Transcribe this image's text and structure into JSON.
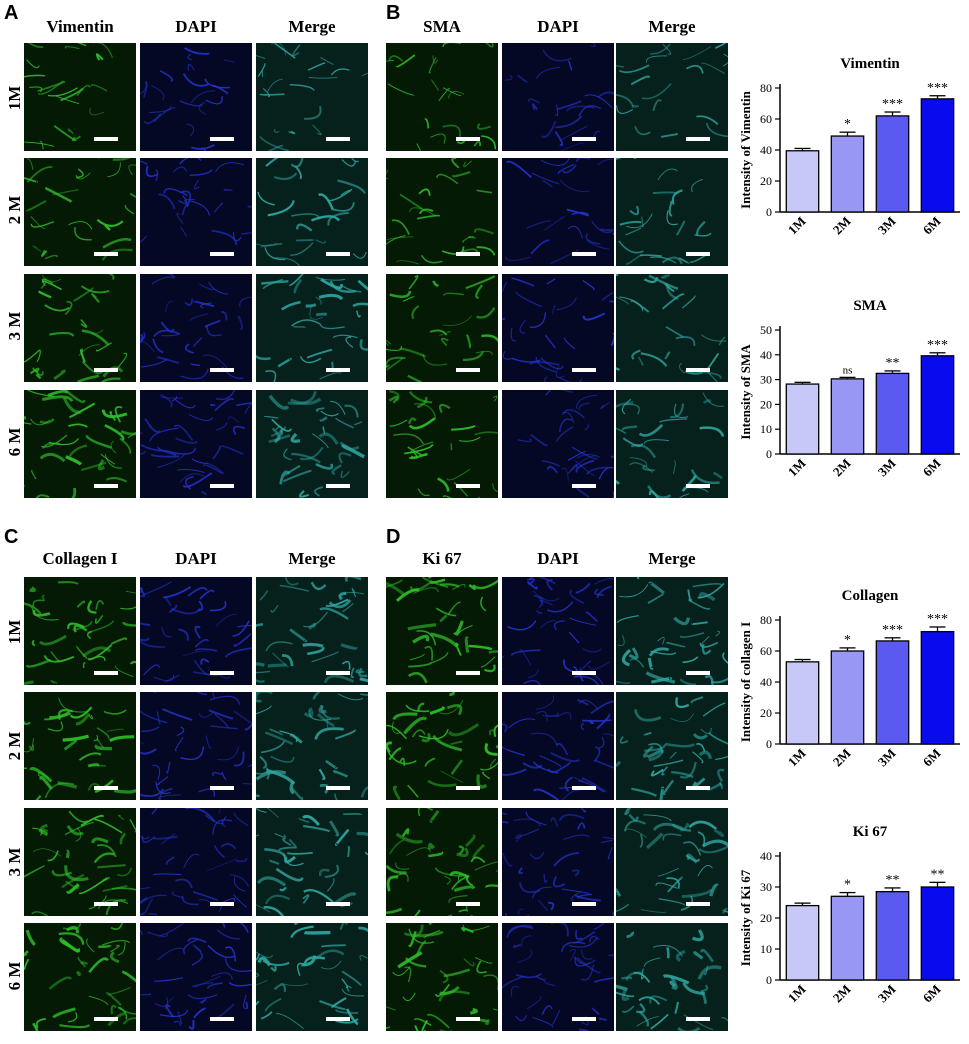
{
  "panels": {
    "A": {
      "letter": "A",
      "columns": [
        "Vimentin",
        "DAPI",
        "Merge"
      ],
      "rows": [
        "1M",
        "2 M",
        "3 M",
        "6 M"
      ]
    },
    "B": {
      "letter": "B",
      "columns": [
        "SMA",
        "DAPI",
        "Merge"
      ]
    },
    "C": {
      "letter": "C",
      "columns": [
        "Collagen I",
        "DAPI",
        "Merge"
      ],
      "rows": [
        "1M",
        "2 M",
        "3 M",
        "6 M"
      ]
    },
    "D": {
      "letter": "D",
      "columns": [
        "Ki 67",
        "DAPI",
        "Merge"
      ]
    }
  },
  "colors": {
    "green_channel": "#2fbf2a",
    "blue_channel": "#2233cc",
    "merge_channel": "#2fa6a0",
    "bar_1M": "#c8c8f8",
    "bar_2M": "#9898f4",
    "bar_3M": "#5a5af0",
    "bar_6M": "#0a0aee"
  },
  "chart_data": [
    {
      "type": "bar",
      "title": "Vimentin",
      "ylabel": "Intensity of Vimentin",
      "categories": [
        "1M",
        "2M",
        "3M",
        "6M"
      ],
      "values": [
        39.5,
        49,
        62,
        73
      ],
      "errors": [
        1.5,
        2.5,
        2.5,
        2
      ],
      "significance": [
        "",
        "*",
        "***",
        "***"
      ],
      "ylim": [
        0,
        80
      ],
      "yticks": [
        0,
        20,
        40,
        60,
        80
      ]
    },
    {
      "type": "bar",
      "title": "SMA",
      "ylabel": "Intensity of SMA",
      "categories": [
        "1M",
        "2M",
        "3M",
        "6M"
      ],
      "values": [
        28.2,
        30.3,
        32.5,
        39.6
      ],
      "errors": [
        0.7,
        0.6,
        1.0,
        1.2
      ],
      "significance": [
        "",
        "ns",
        "**",
        "***"
      ],
      "ylim": [
        0,
        50
      ],
      "yticks": [
        0,
        10,
        20,
        30,
        40,
        50
      ]
    },
    {
      "type": "bar",
      "title": "Collagen",
      "ylabel": "Intensity of collagen I",
      "categories": [
        "1M",
        "2M",
        "3M",
        "6M"
      ],
      "values": [
        53,
        60,
        66.5,
        72.5
      ],
      "errors": [
        1.5,
        2,
        2,
        3
      ],
      "significance": [
        "",
        "*",
        "***",
        "***"
      ],
      "ylim": [
        0,
        80
      ],
      "yticks": [
        0,
        20,
        40,
        60,
        80
      ]
    },
    {
      "type": "bar",
      "title": "Ki 67",
      "ylabel": "Intensity of Ki 67",
      "categories": [
        "1M",
        "2M",
        "3M",
        "6M"
      ],
      "values": [
        24,
        27,
        28.5,
        30
      ],
      "errors": [
        0.8,
        1.2,
        1.2,
        1.5
      ],
      "significance": [
        "",
        "*",
        "**",
        "**"
      ],
      "ylim": [
        0,
        40
      ],
      "yticks": [
        0,
        10,
        20,
        30,
        40
      ]
    }
  ]
}
